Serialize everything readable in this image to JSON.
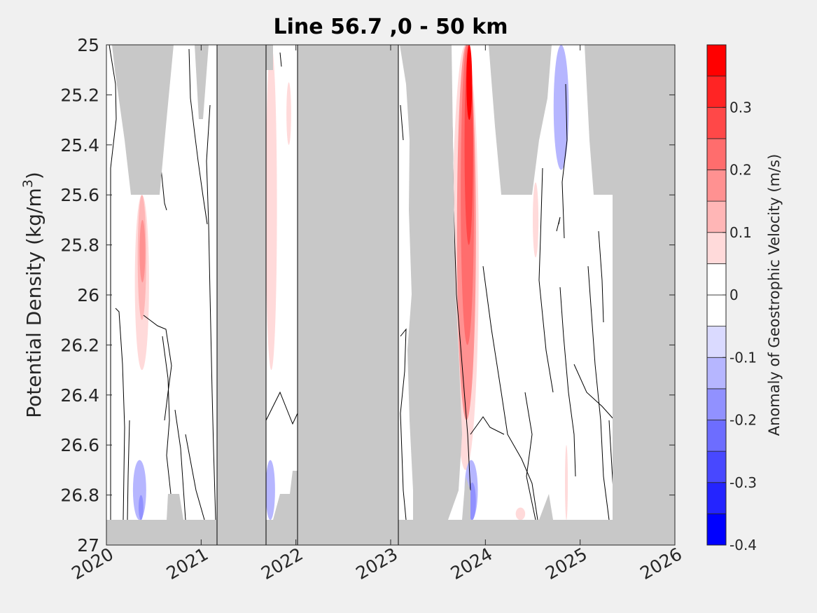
{
  "chart_data": {
    "type": "heatmap",
    "title": "Line 56.7 ,0 - 50 km",
    "xlabel": "",
    "ylabel": "Potential Density (kg/m",
    "ylabel_superscript": "3",
    "ylabel_close": ")",
    "xlim": [
      2020,
      2026
    ],
    "ylim": [
      25,
      27
    ],
    "y_reversed": true,
    "x_ticks": [
      "2020",
      "2021",
      "2022",
      "2023",
      "2024",
      "2025",
      "2026"
    ],
    "y_ticks": [
      "25",
      "25.2",
      "25.4",
      "25.6",
      "25.8",
      "26",
      "26.2",
      "26.4",
      "26.6",
      "26.8",
      "27"
    ],
    "colorbar": {
      "label": "Anomaly of Geostrophic Velocity (m/s)",
      "range": [
        -0.4,
        0.4
      ],
      "tick_labels": [
        "0.3",
        "0.2",
        "0.1",
        "0",
        "-0.1",
        "-0.2",
        "-0.3",
        "-0.4"
      ],
      "levels": [
        {
          "from": -0.4,
          "to": -0.35,
          "color": "#0000ff"
        },
        {
          "from": -0.35,
          "to": -0.3,
          "color": "#2424ff"
        },
        {
          "from": -0.3,
          "to": -0.25,
          "color": "#4848ff"
        },
        {
          "from": -0.25,
          "to": -0.2,
          "color": "#6d6dff"
        },
        {
          "from": -0.2,
          "to": -0.15,
          "color": "#9191ff"
        },
        {
          "from": -0.15,
          "to": -0.1,
          "color": "#b6b6ff"
        },
        {
          "from": -0.1,
          "to": -0.05,
          "color": "#dadaff"
        },
        {
          "from": -0.05,
          "to": 0.0,
          "color": "#ffffff"
        },
        {
          "from": 0.0,
          "to": 0.05,
          "color": "#ffffff"
        },
        {
          "from": 0.05,
          "to": 0.1,
          "color": "#ffdada"
        },
        {
          "from": 0.1,
          "to": 0.15,
          "color": "#ffb6b6"
        },
        {
          "from": 0.15,
          "to": 0.2,
          "color": "#ff9191"
        },
        {
          "from": 0.2,
          "to": 0.25,
          "color": "#ff6d6d"
        },
        {
          "from": 0.25,
          "to": 0.3,
          "color": "#ff4848"
        },
        {
          "from": 0.3,
          "to": 0.35,
          "color": "#ff2424"
        },
        {
          "from": 0.35,
          "to": 0.4,
          "color": "#ff0000"
        }
      ]
    },
    "anomaly_features": [
      {
        "t0": 2020.3,
        "t1": 2020.45,
        "d0": 25.6,
        "d1": 26.3,
        "value": 0.1
      },
      {
        "t0": 2020.33,
        "t1": 2020.42,
        "d0": 25.6,
        "d1": 26.1,
        "value": 0.15
      },
      {
        "t0": 2020.35,
        "t1": 2020.41,
        "d0": 25.7,
        "d1": 25.95,
        "value": 0.2
      },
      {
        "t0": 2020.28,
        "t1": 2020.42,
        "d0": 26.66,
        "d1": 26.9,
        "value": -0.1
      },
      {
        "t0": 2020.34,
        "t1": 2020.39,
        "d0": 26.8,
        "d1": 26.9,
        "value": -0.15
      },
      {
        "t0": 2021.68,
        "t1": 2021.8,
        "d0": 25.0,
        "d1": 26.3,
        "value": 0.1
      },
      {
        "t0": 2021.9,
        "t1": 2021.95,
        "d0": 25.15,
        "d1": 25.4,
        "value": 0.1
      },
      {
        "t0": 2021.68,
        "t1": 2021.78,
        "d0": 26.66,
        "d1": 26.9,
        "value": -0.1
      },
      {
        "t0": 2023.65,
        "t1": 2023.93,
        "d0": 25.0,
        "d1": 26.7,
        "value": 0.1
      },
      {
        "t0": 2023.7,
        "t1": 2023.9,
        "d0": 25.0,
        "d1": 26.5,
        "value": 0.2
      },
      {
        "t0": 2023.74,
        "t1": 2023.88,
        "d0": 25.0,
        "d1": 26.2,
        "value": 0.25
      },
      {
        "t0": 2023.78,
        "t1": 2023.87,
        "d0": 25.0,
        "d1": 25.8,
        "value": 0.3
      },
      {
        "t0": 2023.8,
        "t1": 2023.86,
        "d0": 25.0,
        "d1": 25.3,
        "value": 0.4
      },
      {
        "t0": 2023.78,
        "t1": 2023.92,
        "d0": 26.66,
        "d1": 26.9,
        "value": -0.1
      },
      {
        "t0": 2023.82,
        "t1": 2023.9,
        "d0": 26.75,
        "d1": 26.9,
        "value": -0.15
      },
      {
        "t0": 2024.72,
        "t1": 2024.88,
        "d0": 25.0,
        "d1": 25.5,
        "value": -0.1
      },
      {
        "t0": 2024.5,
        "t1": 2024.56,
        "d0": 25.55,
        "d1": 25.85,
        "value": 0.1
      },
      {
        "t0": 2024.84,
        "t1": 2024.87,
        "d0": 26.6,
        "d1": 26.9,
        "value": 0.1
      },
      {
        "t0": 2024.32,
        "t1": 2024.42,
        "d0": 26.85,
        "d1": 26.9,
        "value": 0.1
      }
    ]
  }
}
